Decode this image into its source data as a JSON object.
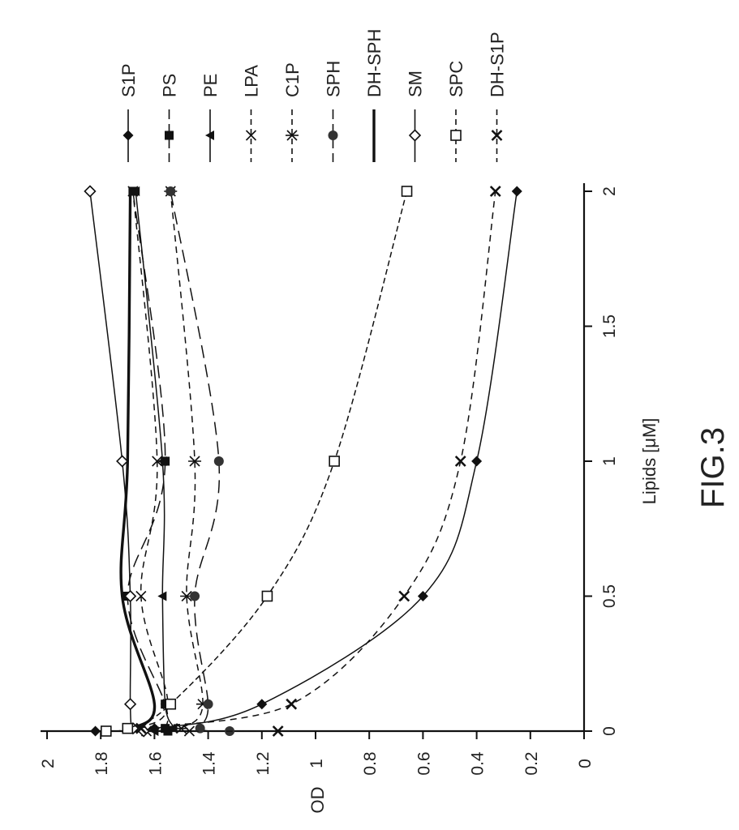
{
  "caption": "FIG.3",
  "chart_data": {
    "type": "line",
    "title": "",
    "xlabel": "Lipids [μM]",
    "ylabel": "OD",
    "x_ticks": [
      "0",
      "0.5",
      "1",
      "1.5",
      "2"
    ],
    "y_ticks": [
      "0",
      "0.2",
      "0.4",
      "0.6",
      "0.8",
      "1",
      "1.2",
      "1.4",
      "1.6",
      "1.8",
      "2"
    ],
    "xlim": [
      0,
      2
    ],
    "ylim": [
      0,
      2
    ],
    "grid": false,
    "legend_position": "right",
    "rotated": true,
    "x": [
      0,
      0.01,
      0.1,
      0.5,
      1,
      2
    ],
    "series": [
      {
        "name": "S1P",
        "marker": "diamond-filled",
        "dash": "solid",
        "values": [
          1.82,
          1.6,
          1.2,
          0.6,
          0.4,
          0.25
        ]
      },
      {
        "name": "PS",
        "marker": "square-filled",
        "dash": "longdash",
        "values": [
          1.55,
          1.56,
          1.56,
          1.7,
          1.56,
          1.68
        ]
      },
      {
        "name": "PE",
        "marker": "triangle-filled",
        "dash": "solid",
        "values": [
          1.6,
          1.53,
          1.56,
          1.57,
          1.57,
          1.67
        ]
      },
      {
        "name": "LPA",
        "marker": "x",
        "dash": "dashed",
        "values": [
          1.63,
          1.66,
          1.55,
          1.65,
          1.59,
          1.68
        ]
      },
      {
        "name": "C1P",
        "marker": "asterisk",
        "dash": "dashed",
        "values": [
          1.47,
          1.5,
          1.42,
          1.48,
          1.45,
          1.54
        ]
      },
      {
        "name": "SPH",
        "marker": "circle-filled",
        "dash": "longdash",
        "values": [
          1.32,
          1.43,
          1.4,
          1.45,
          1.36,
          1.54
        ]
      },
      {
        "name": "DH-SPH",
        "marker": "none",
        "dash": "solid-thick",
        "values": [
          1.7,
          1.68,
          1.6,
          1.72,
          1.7,
          1.69
        ]
      },
      {
        "name": "SM",
        "marker": "diamond-open",
        "dash": "solid",
        "values": [
          1.64,
          1.68,
          1.69,
          1.69,
          1.72,
          1.84
        ]
      },
      {
        "name": "SPC",
        "marker": "square-open",
        "dash": "shortdash",
        "values": [
          1.78,
          1.7,
          1.54,
          1.18,
          0.93,
          0.66
        ]
      },
      {
        "name": "DH-S1P",
        "marker": "x-bold",
        "dash": "dashed",
        "values": [
          1.14,
          1.65,
          1.09,
          0.67,
          0.46,
          0.33
        ]
      }
    ]
  }
}
